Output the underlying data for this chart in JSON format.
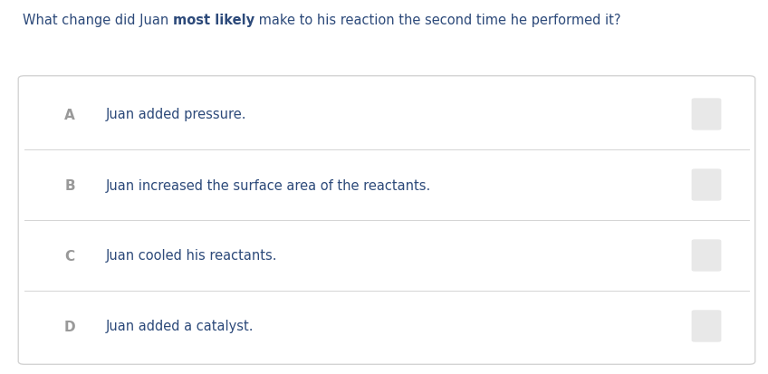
{
  "background_color": "#ffffff",
  "question_parts": [
    {
      "text": "What change did Juan ",
      "color": "#2d4a7a",
      "bold": false
    },
    {
      "text": "most likely",
      "color": "#2d4a7a",
      "bold": true
    },
    {
      "text": " make to his reaction the second time he performed it?",
      "color": "#2d4a7a",
      "bold": false
    }
  ],
  "options": [
    {
      "letter": "A",
      "letter_color": "#999999",
      "text": "Juan added pressure.",
      "text_color": "#2d4a7a"
    },
    {
      "letter": "B",
      "letter_color": "#999999",
      "text": "Juan increased the surface area of the reactants.",
      "text_color": "#2d4a7a"
    },
    {
      "letter": "C",
      "letter_color": "#999999",
      "text": "Juan cooled his reactants.",
      "text_color": "#2d4a7a"
    },
    {
      "letter": "D",
      "letter_color": "#999999",
      "text": "Juan added a catalyst.",
      "text_color": "#2d4a7a"
    }
  ],
  "box_border": "#d4d4d4",
  "divider_color": "#d4d4d4",
  "checkbox_color": "#e8e8e8",
  "question_fontsize": 10.5,
  "option_letter_fontsize": 11,
  "option_text_fontsize": 10.5,
  "fig_width": 8.48,
  "fig_height": 4.14,
  "dpi": 100
}
